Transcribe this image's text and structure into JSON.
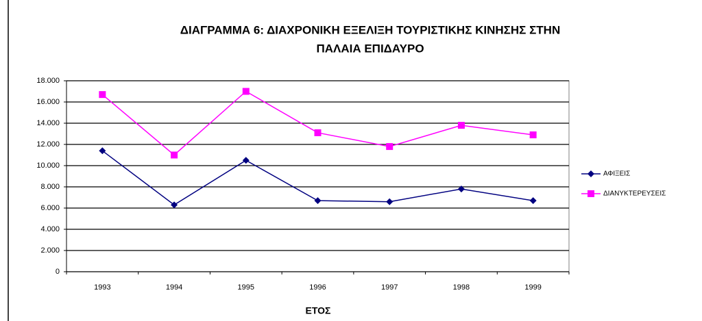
{
  "chart_data": {
    "type": "line",
    "title": [
      "ΔΙΑΓΡΑΜΜΑ 6: ΔΙΑΧΡΟΝΙΚΗ ΕΞΕΛΙΞΗ ΤΟΥΡΙΣΤΙΚΗΣ ΚΙΝΗΣΗΣ ΣΤΗΝ",
      "ΠΑΛΑΙΑ ΕΠΙΔΑΥΡΟ"
    ],
    "x_label": "ΕΤΟΣ",
    "categories": [
      "1993",
      "1994",
      "1995",
      "1996",
      "1997",
      "1998",
      "1999"
    ],
    "series": [
      {
        "name": "ΑΦΙΞΕΙΣ",
        "color": "#000080",
        "marker": "diamond",
        "values": [
          11400,
          6300,
          10500,
          6700,
          6600,
          7800,
          6700
        ]
      },
      {
        "name": "ΔΙΑΝΥΚΤΕΡΕΥΣΕΙΣ",
        "color": "#ff00ff",
        "marker": "square",
        "values": [
          16700,
          11000,
          17000,
          13100,
          11800,
          13800,
          12900
        ]
      }
    ],
    "ylim": [
      0,
      18000
    ],
    "yticks": [
      0,
      {
        "value": 2000,
        "label": "2.000"
      },
      {
        "value": 4000,
        "label": "4.000"
      },
      {
        "value": 6000,
        "label": "6.000"
      },
      {
        "value": 8000,
        "label": "8.000"
      },
      {
        "value": 10000,
        "label": "10.000"
      },
      {
        "value": 12000,
        "label": "12.000"
      },
      {
        "value": 14000,
        "label": "14.000"
      },
      {
        "value": 16000,
        "label": "16.000"
      },
      {
        "value": 18000,
        "label": "18.000"
      }
    ],
    "grid": true,
    "legend": "right"
  }
}
